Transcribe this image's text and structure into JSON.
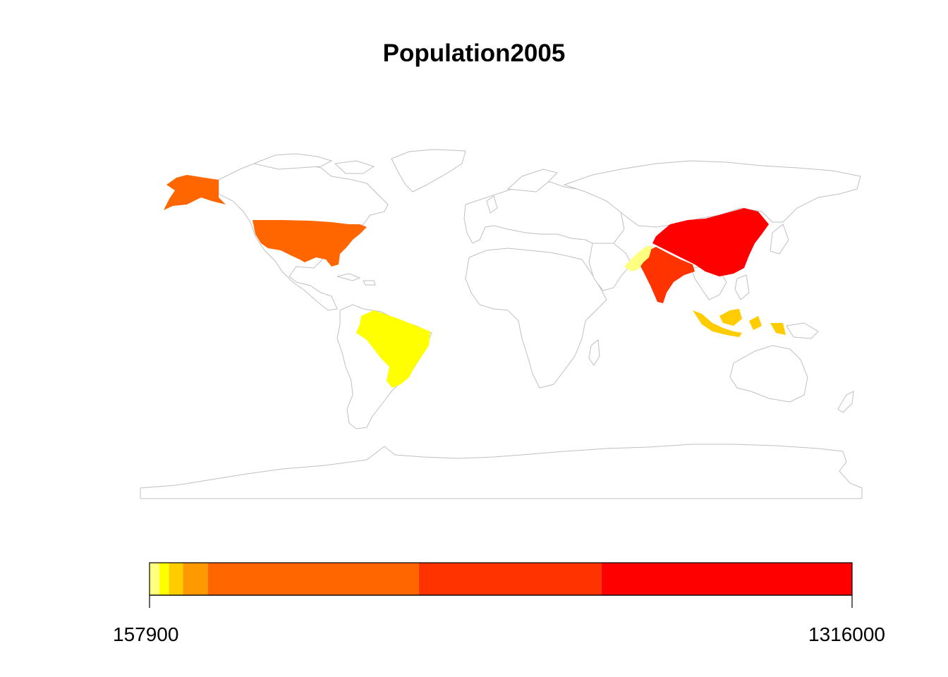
{
  "title": "Population2005",
  "legend": {
    "min_label": "157900",
    "max_label": "1316000",
    "range": [
      157900,
      1316000
    ],
    "bins": [
      {
        "from": 157900,
        "to": 173900,
        "color": "#FFFF80"
      },
      {
        "from": 173900,
        "to": 190000,
        "color": "#FFFF00"
      },
      {
        "from": 190000,
        "to": 213000,
        "color": "#FFCC00"
      },
      {
        "from": 213000,
        "to": 254000,
        "color": "#FF9900"
      },
      {
        "from": 254000,
        "to": 602000,
        "color": "#FF6600"
      },
      {
        "from": 602000,
        "to": 903000,
        "color": "#FF3300"
      },
      {
        "from": 903000,
        "to": 1316000,
        "color": "#FF0000"
      }
    ]
  },
  "colors": {
    "border": "#c0c0c0",
    "background": "#ffffff"
  }
}
